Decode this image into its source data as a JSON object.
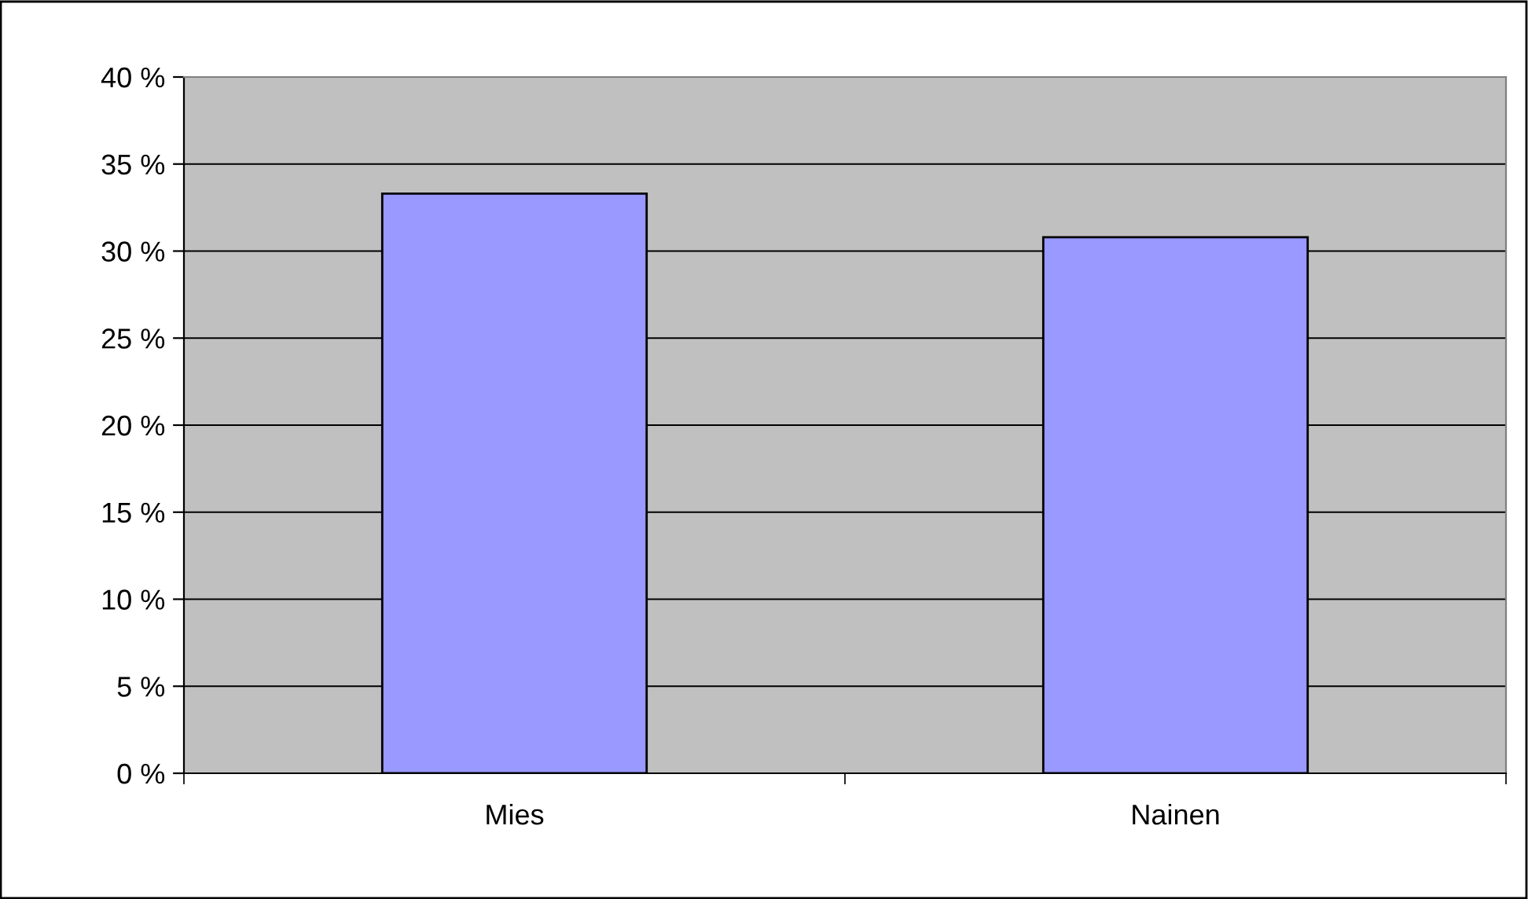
{
  "chart_data": {
    "type": "bar",
    "categories": [
      "Mies",
      "Nainen"
    ],
    "values": [
      33.3,
      30.8
    ],
    "color": "#9999ff",
    "ylim": [
      0,
      40
    ],
    "yticks": [
      {
        "value": 0,
        "label": "0 %"
      },
      {
        "value": 5,
        "label": "5 %"
      },
      {
        "value": 10,
        "label": "10 %"
      },
      {
        "value": 15,
        "label": "15 %"
      },
      {
        "value": 20,
        "label": "20 %"
      },
      {
        "value": 25,
        "label": "25 %"
      },
      {
        "value": 30,
        "label": "30 %"
      },
      {
        "value": 35,
        "label": "35 %"
      },
      {
        "value": 40,
        "label": "40 %"
      }
    ],
    "grid": "y",
    "legend": false
  }
}
